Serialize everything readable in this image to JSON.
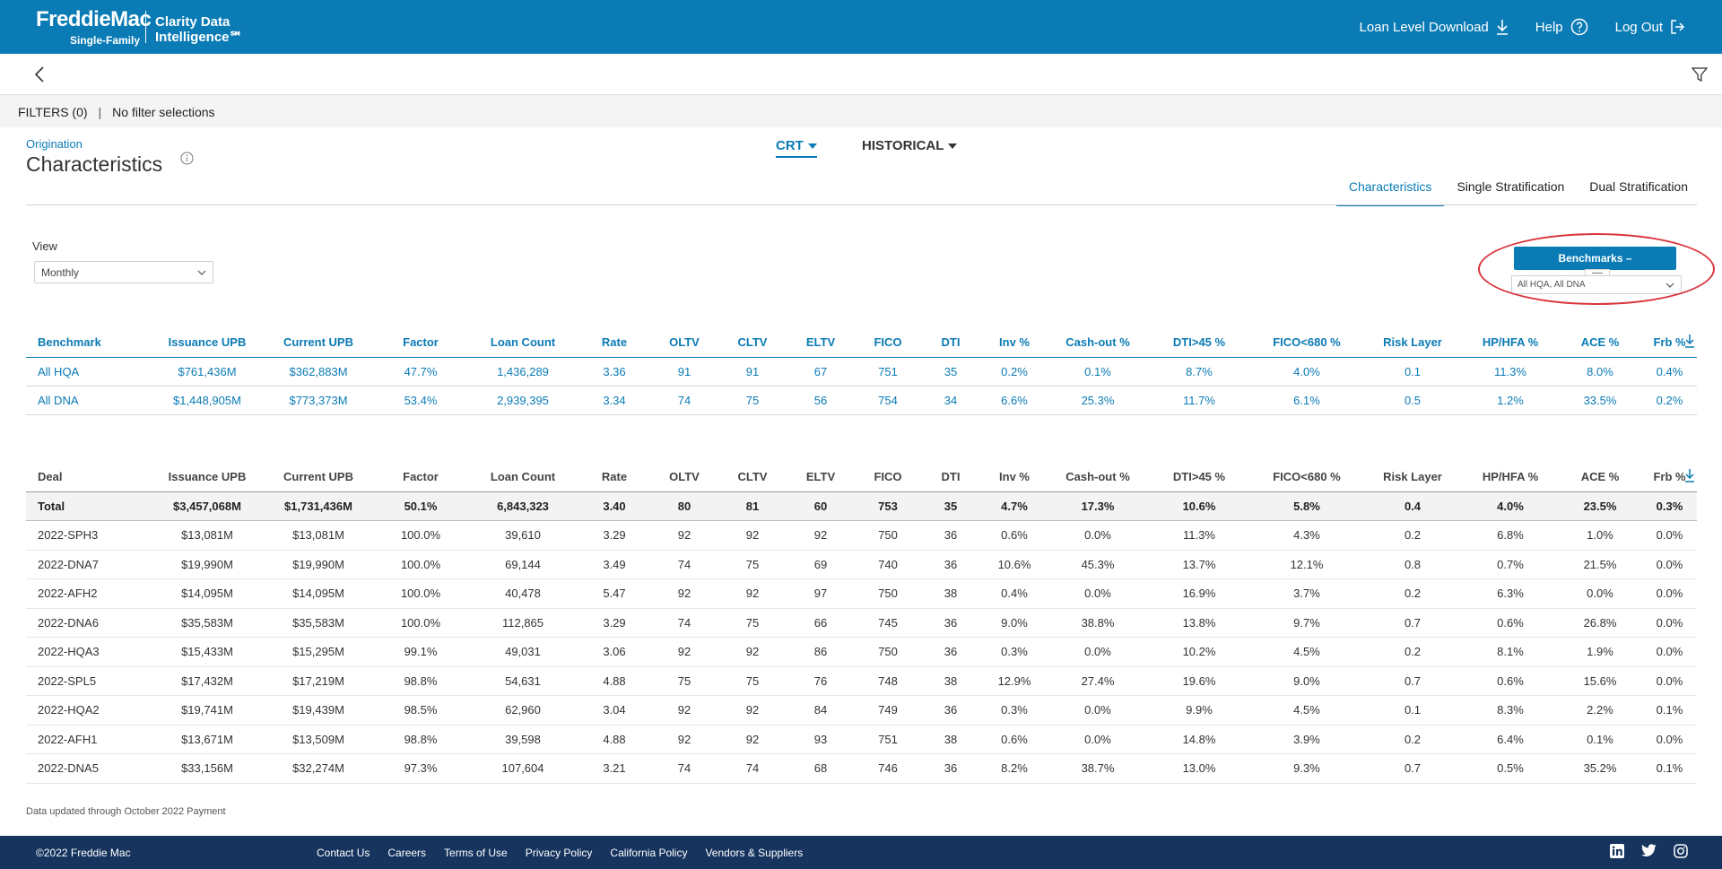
{
  "header": {
    "logo_main": "FreddieMac",
    "logo_sub": "Single-Family",
    "product_name": "Clarity Data Intelligence℠",
    "nav": [
      {
        "label": "Loan Level Download",
        "icon": "download-icon"
      },
      {
        "label": "Help",
        "icon": "help-icon"
      },
      {
        "label": "Log Out",
        "icon": "logout-icon"
      }
    ]
  },
  "filters": {
    "label": "FILTERS (0)",
    "separator": "|",
    "value": "No filter selections"
  },
  "page": {
    "breadcrumb": "Origination",
    "title": "Characteristics",
    "dropdown_primary": "CRT",
    "dropdown_secondary": "HISTORICAL"
  },
  "tabs": [
    "Characteristics",
    "Single Stratification",
    "Dual Stratification"
  ],
  "active_tab": "Characteristics",
  "view": {
    "label": "View",
    "selected": "Monthly"
  },
  "benchmarks": {
    "button_label": "Benchmarks –",
    "selected": "All HQA, All DNA"
  },
  "benchmark_table": {
    "columns": [
      "Benchmark",
      "Issuance UPB",
      "Current UPB",
      "Factor",
      "Loan Count",
      "Rate",
      "OLTV",
      "CLTV",
      "ELTV",
      "FICO",
      "DTI",
      "Inv %",
      "Cash-out %",
      "DTI>45 %",
      "FICO<680 %",
      "Risk Layer",
      "HP/HFA %",
      "ACE %",
      "Frb %"
    ],
    "rows": [
      [
        "All HQA",
        "$761,436M",
        "$362,883M",
        "47.7%",
        "1,436,289",
        "3.36",
        "91",
        "91",
        "67",
        "751",
        "35",
        "0.2%",
        "0.1%",
        "8.7%",
        "4.0%",
        "0.1",
        "11.3%",
        "8.0%",
        "0.4%"
      ],
      [
        "All DNA",
        "$1,448,905M",
        "$773,373M",
        "53.4%",
        "2,939,395",
        "3.34",
        "74",
        "75",
        "56",
        "754",
        "34",
        "6.6%",
        "25.3%",
        "11.7%",
        "6.1%",
        "0.5",
        "1.2%",
        "33.5%",
        "0.2%"
      ]
    ]
  },
  "deal_table": {
    "columns": [
      "Deal",
      "Issuance UPB",
      "Current UPB",
      "Factor",
      "Loan Count",
      "Rate",
      "OLTV",
      "CLTV",
      "ELTV",
      "FICO",
      "DTI",
      "Inv %",
      "Cash-out %",
      "DTI>45 %",
      "FICO<680 %",
      "Risk Layer",
      "HP/HFA %",
      "ACE %",
      "Frb %"
    ],
    "total": [
      "Total",
      "$3,457,068M",
      "$1,731,436M",
      "50.1%",
      "6,843,323",
      "3.40",
      "80",
      "81",
      "60",
      "753",
      "35",
      "4.7%",
      "17.3%",
      "10.6%",
      "5.8%",
      "0.4",
      "4.0%",
      "23.5%",
      "0.3%"
    ],
    "rows": [
      [
        "2022-SPH3",
        "$13,081M",
        "$13,081M",
        "100.0%",
        "39,610",
        "3.29",
        "92",
        "92",
        "92",
        "750",
        "36",
        "0.6%",
        "0.0%",
        "11.3%",
        "4.3%",
        "0.2",
        "6.8%",
        "1.0%",
        "0.0%"
      ],
      [
        "2022-DNA7",
        "$19,990M",
        "$19,990M",
        "100.0%",
        "69,144",
        "3.49",
        "74",
        "75",
        "69",
        "740",
        "36",
        "10.6%",
        "45.3%",
        "13.7%",
        "12.1%",
        "0.8",
        "0.7%",
        "21.5%",
        "0.0%"
      ],
      [
        "2022-AFH2",
        "$14,095M",
        "$14,095M",
        "100.0%",
        "40,478",
        "5.47",
        "92",
        "92",
        "97",
        "750",
        "38",
        "0.4%",
        "0.0%",
        "16.9%",
        "3.7%",
        "0.2",
        "6.3%",
        "0.0%",
        "0.0%"
      ],
      [
        "2022-DNA6",
        "$35,583M",
        "$35,583M",
        "100.0%",
        "112,865",
        "3.29",
        "74",
        "75",
        "66",
        "745",
        "36",
        "9.0%",
        "38.8%",
        "13.8%",
        "9.7%",
        "0.7",
        "0.6%",
        "26.8%",
        "0.0%"
      ],
      [
        "2022-HQA3",
        "$15,433M",
        "$15,295M",
        "99.1%",
        "49,031",
        "3.06",
        "92",
        "92",
        "86",
        "750",
        "36",
        "0.3%",
        "0.0%",
        "10.2%",
        "4.5%",
        "0.2",
        "8.1%",
        "1.9%",
        "0.0%"
      ],
      [
        "2022-SPL5",
        "$17,432M",
        "$17,219M",
        "98.8%",
        "54,631",
        "4.88",
        "75",
        "75",
        "76",
        "748",
        "38",
        "12.9%",
        "27.4%",
        "19.6%",
        "9.0%",
        "0.7",
        "0.6%",
        "15.6%",
        "0.0%"
      ],
      [
        "2022-HQA2",
        "$19,741M",
        "$19,439M",
        "98.5%",
        "62,960",
        "3.04",
        "92",
        "92",
        "84",
        "749",
        "36",
        "0.3%",
        "0.0%",
        "9.9%",
        "4.5%",
        "0.1",
        "8.3%",
        "2.2%",
        "0.1%"
      ],
      [
        "2022-AFH1",
        "$13,671M",
        "$13,509M",
        "98.8%",
        "39,598",
        "4.88",
        "92",
        "92",
        "93",
        "751",
        "38",
        "0.6%",
        "0.0%",
        "14.8%",
        "3.9%",
        "0.2",
        "6.4%",
        "0.1%",
        "0.0%"
      ],
      [
        "2022-DNA5",
        "$33,156M",
        "$32,274M",
        "97.3%",
        "107,604",
        "3.21",
        "74",
        "74",
        "68",
        "746",
        "36",
        "8.2%",
        "38.7%",
        "13.0%",
        "9.3%",
        "0.7",
        "0.5%",
        "35.2%",
        "0.1%"
      ]
    ]
  },
  "data_note": "Data updated through October 2022 Payment",
  "footer": {
    "copyright": "©2022 Freddie Mac",
    "links": [
      "Contact Us",
      "Careers",
      "Terms of Use",
      "Privacy Policy",
      "California Policy",
      "Vendors & Suppliers"
    ],
    "social": [
      "linkedin-icon",
      "twitter-icon",
      "instagram-icon"
    ]
  },
  "colors": {
    "brand_blue": "#0a7bb5",
    "footer_navy": "#16345e",
    "highlight_ring": "#d9343c"
  }
}
